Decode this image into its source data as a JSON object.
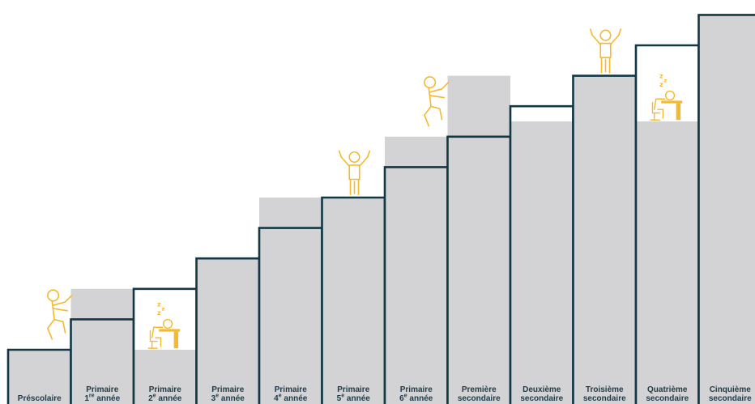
{
  "colors": {
    "outline": "#123845",
    "fill": "#d3d3d5",
    "figure": "#f4b92f"
  },
  "steps": [
    {
      "line1": "Préscolaire",
      "line2": "",
      "level": 0,
      "prior": null,
      "figure": null
    },
    {
      "line1": "Primaire",
      "num": "1",
      "sup": "re",
      "rest": " année",
      "level": 1,
      "prior": 2,
      "figure": "climber"
    },
    {
      "line1": "Primaire",
      "num": "2",
      "sup": "e",
      "rest": " année",
      "level": 2,
      "prior": 0,
      "figure": "sleeper"
    },
    {
      "line1": "Primaire",
      "num": "3",
      "sup": "e",
      "rest": " année",
      "level": 3,
      "prior": null,
      "figure": null
    },
    {
      "line1": "Primaire",
      "num": "4",
      "sup": "e",
      "rest": " année",
      "level": 4,
      "prior": 5,
      "figure": null
    },
    {
      "line1": "Primaire",
      "num": "5",
      "sup": "e",
      "rest": " année",
      "level": 5,
      "prior": null,
      "figure": "cheerer"
    },
    {
      "line1": "Primaire",
      "num": "6",
      "sup": "e",
      "rest": " année",
      "level": 6,
      "prior": 7,
      "figure": null
    },
    {
      "line1": "Première",
      "line2": "secondaire",
      "level": 7,
      "prior": 9,
      "figure": "climber"
    },
    {
      "line1": "Deuxième",
      "line2": "secondaire",
      "level": 8,
      "prior": 7.5,
      "figure": null
    },
    {
      "line1": "Troisième",
      "line2": "secondaire",
      "level": 9,
      "prior": null,
      "figure": "cheerer"
    },
    {
      "line1": "Quatrième",
      "line2": "secondaire",
      "level": 10,
      "prior": 7.5,
      "figure": "sleeper"
    },
    {
      "line1": "Cinquième",
      "line2": "secondaire",
      "level": 11,
      "prior": null,
      "figure": null
    }
  ]
}
